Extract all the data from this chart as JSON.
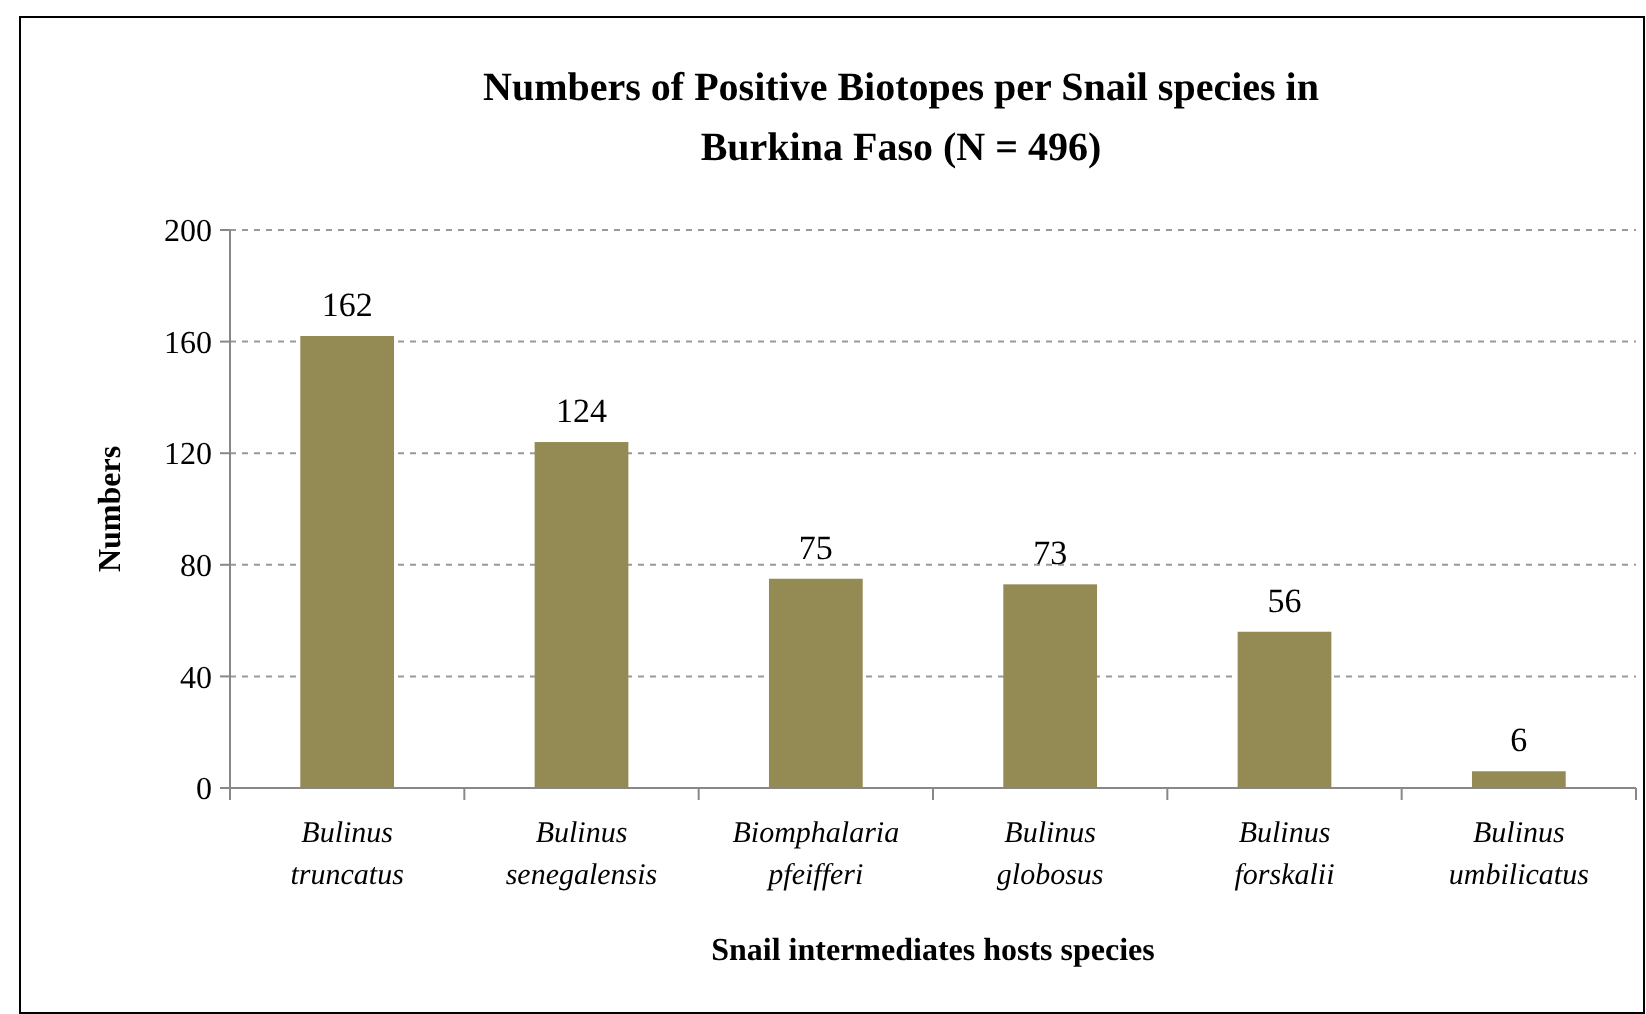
{
  "chart_data": {
    "type": "bar",
    "title": "Numbers of  Positive Biotopes per Snail species in Burkina Faso (N = 496)",
    "xlabel": "Snail intermediates hosts species",
    "ylabel": "Numbers",
    "categories": [
      "Bulinus truncatus",
      "Bulinus senegalensis",
      "Biomphalaria pfeifferi",
      "Bulinus globosus",
      "Bulinus forskalii",
      "Bulinus umbilicatus"
    ],
    "values": [
      162,
      124,
      75,
      73,
      56,
      6
    ],
    "color": "#948a54",
    "ylim": [
      0,
      200
    ],
    "yticks": [
      0,
      40,
      80,
      120,
      160,
      200
    ],
    "grid": "y",
    "data_labels": true
  }
}
